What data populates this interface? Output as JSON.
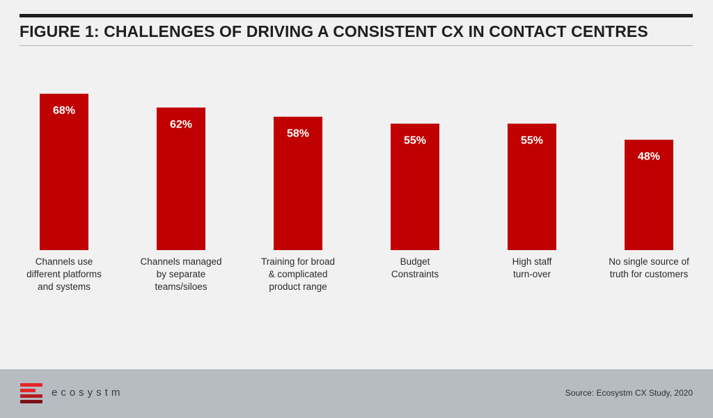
{
  "title": "FIGURE 1: CHALLENGES OF DRIVING A CONSISTENT CX IN CONTACT CENTRES",
  "colors": {
    "bar": "#c00000",
    "bar_label": "#ffffff"
  },
  "chart_data": {
    "type": "bar",
    "categories": [
      [
        "Channels use",
        "different platforms",
        "and systems"
      ],
      [
        "Channels managed",
        "by separate",
        "teams/siloes"
      ],
      [
        "Training for broad",
        "& complicated",
        "product range"
      ],
      [
        "Budget",
        "Constraints"
      ],
      [
        "High staff",
        "turn-over"
      ],
      [
        "No single source of",
        "truth for customers"
      ]
    ],
    "values": [
      68,
      62,
      58,
      55,
      55,
      48
    ],
    "value_labels": [
      "68%",
      "62%",
      "58%",
      "55%",
      "55%",
      "48%"
    ],
    "unit": "%",
    "title": "FIGURE 1: CHALLENGES OF DRIVING A CONSISTENT CX IN CONTACT CENTRES",
    "xlabel": "",
    "ylabel": "",
    "ylim": [
      0,
      100
    ],
    "grid": false
  },
  "footer": {
    "brand": "ecosystm",
    "source": "Source: Ecosystm CX Study, 2020",
    "logo_colors": [
      "#e5262b",
      "#b31b20",
      "#7a1217"
    ]
  }
}
